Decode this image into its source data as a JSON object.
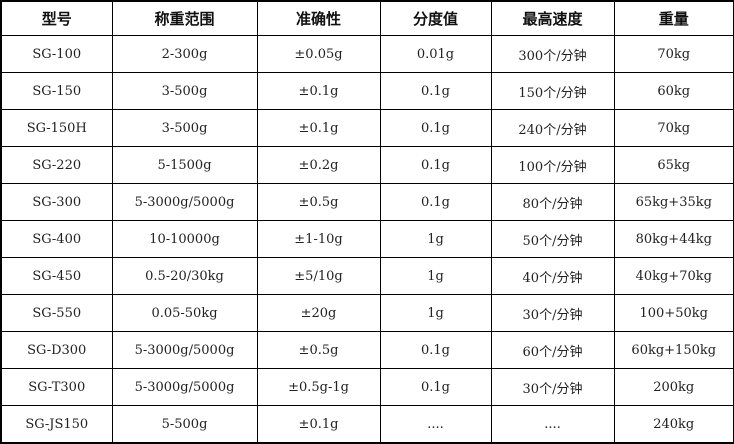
{
  "table": {
    "headers": [
      "型号",
      "称重范围",
      "准确性",
      "分度值",
      "最高速度",
      "重量"
    ],
    "rows": [
      [
        "SG-100",
        "2-300g",
        "±0.05g",
        "0.01g",
        "300个/分钟",
        "70kg"
      ],
      [
        "SG-150",
        "3-500g",
        "±0.1g",
        "0.1g",
        "150个/分钟",
        "60kg"
      ],
      [
        "SG-150H",
        "3-500g",
        "±0.1g",
        "0.1g",
        "240个/分钟",
        "70kg"
      ],
      [
        "SG-220",
        "5-1500g",
        "±0.2g",
        "0.1g",
        "100个/分钟",
        "65kg"
      ],
      [
        "SG-300",
        "5-3000g/5000g",
        "±0.5g",
        "0.1g",
        "80个/分钟",
        "65kg+35kg"
      ],
      [
        "SG-400",
        "10-10000g",
        "±1-10g",
        "1g",
        "50个/分钟",
        "80kg+44kg"
      ],
      [
        "SG-450",
        "0.5-20/30kg",
        "±5/10g",
        "1g",
        "40个/分钟",
        "40kg+70kg"
      ],
      [
        "SG-550",
        "0.05-50kg",
        "±20g",
        "1g",
        "30个/分钟",
        "100+50kg"
      ],
      [
        "SG-D300",
        "5-3000g/5000g",
        "±0.5g",
        "0.1g",
        "60个/分钟",
        "60kg+150kg"
      ],
      [
        "SG-T300",
        "5-3000g/5000g",
        "±0.5g-1g",
        "0.1g",
        "30个/分钟",
        "200kg"
      ],
      [
        "SG-JS150",
        "5-500g",
        "±0.1g",
        "....",
        "....",
        "240kg"
      ]
    ]
  }
}
